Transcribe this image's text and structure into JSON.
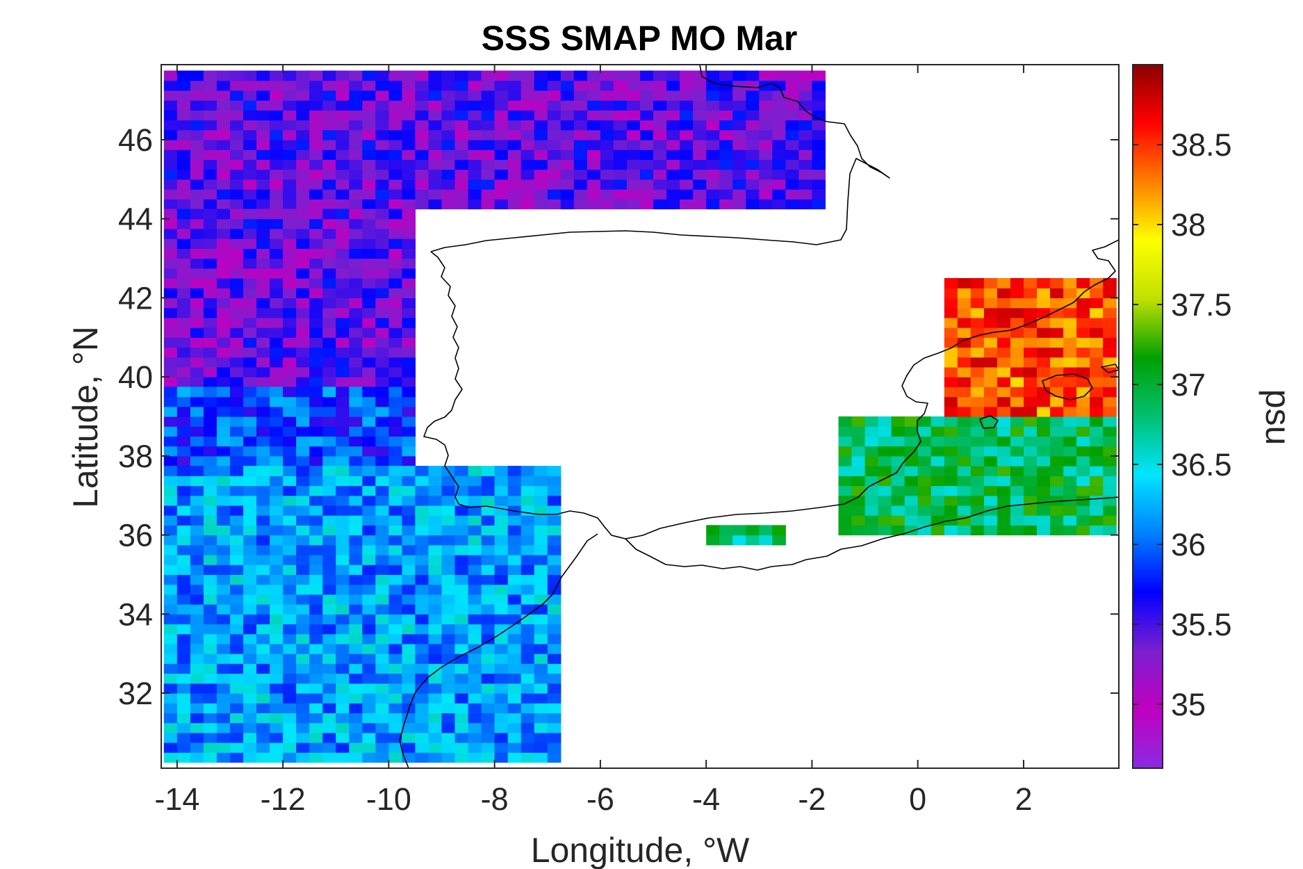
{
  "chart_data": {
    "type": "heatmap",
    "title": "SSS SMAP MO Mar",
    "xlabel": "Longitude, °W",
    "ylabel": "Latitude, °N",
    "colorbar_label": "psu",
    "xlim": [
      -14.3,
      3.8
    ],
    "ylim": [
      30.1,
      47.9
    ],
    "x_ticks": [
      -14,
      -12,
      -10,
      -8,
      -6,
      -4,
      -2,
      0,
      2
    ],
    "x_tick_labels": [
      "-14",
      "-12",
      "-10",
      "-8",
      "-6",
      "-4",
      "-2",
      "0",
      "2"
    ],
    "y_ticks": [
      32,
      34,
      36,
      38,
      40,
      42,
      44,
      46
    ],
    "y_tick_labels": [
      "32",
      "34",
      "36",
      "38",
      "40",
      "42",
      "44",
      "46"
    ],
    "clim": [
      34.6,
      39.0
    ],
    "colorbar_ticks": [
      35,
      35.5,
      36,
      36.5,
      37,
      37.5,
      38,
      38.5
    ],
    "colorbar_tick_labels": [
      "35",
      "35.5",
      "36",
      "36.5",
      "37",
      "37.5",
      "38",
      "38.5"
    ],
    "colormap": [
      "#8a2be2",
      "#c000c0",
      "#7b1fd0",
      "#0000ff",
      "#0080ff",
      "#00e5ff",
      "#00c070",
      "#00a000",
      "#c0e000",
      "#ffff00",
      "#ff8000",
      "#ff0000",
      "#8b0000"
    ],
    "grid": false,
    "grid_resolution_deg": 0.25,
    "regions": [
      {
        "name": "bay_of_biscay",
        "lon": [
          -14.25,
          -1.75
        ],
        "lat": [
          44.25,
          47.75
        ],
        "value_approx": 35.4
      },
      {
        "name": "atlantic_north_of_40",
        "lon": [
          -14.25,
          -9.5
        ],
        "lat": [
          39.75,
          44.25
        ],
        "value_approx": 35.4
      },
      {
        "name": "atlantic_38_40",
        "lon": [
          -14.25,
          -9.5
        ],
        "lat": [
          37.75,
          39.75
        ],
        "value_approx": 35.9
      },
      {
        "name": "atlantic_south",
        "lon": [
          -14.25,
          -6.75
        ],
        "lat": [
          30.25,
          37.75
        ],
        "value_approx": 36.2
      },
      {
        "name": "alboran_west",
        "lon": [
          -4.0,
          -2.5
        ],
        "lat": [
          35.75,
          36.25
        ],
        "value_approx": 36.8
      },
      {
        "name": "western_mediterranean",
        "lon": [
          -1.5,
          3.75
        ],
        "lat": [
          36.0,
          39.0
        ],
        "value_approx": 36.9
      },
      {
        "name": "balearic_north",
        "lon": [
          0.5,
          3.75
        ],
        "lat": [
          39.0,
          42.5
        ],
        "value_approx": 38.4
      }
    ]
  }
}
